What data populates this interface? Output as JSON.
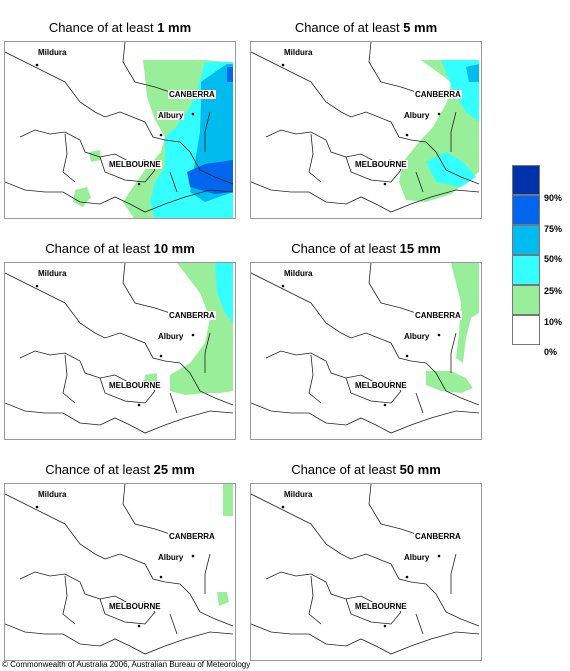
{
  "panels": [
    {
      "prefix": "Chance of at least ",
      "amount": "1 mm"
    },
    {
      "prefix": "Chance of at least ",
      "amount": "5 mm"
    },
    {
      "prefix": "Chance of at least ",
      "amount": "10 mm"
    },
    {
      "prefix": "Chance of at least ",
      "amount": "15 mm"
    },
    {
      "prefix": "Chance of at least ",
      "amount": "25 mm"
    },
    {
      "prefix": "Chance of at least ",
      "amount": "50 mm"
    }
  ],
  "cities": {
    "mildura": "Mildura",
    "canberra": "CANBERRA",
    "albury": "Albury",
    "melbourne": "MELBOURNE"
  },
  "legend": {
    "labels": [
      "90%",
      "75%",
      "50%",
      "25%",
      "10%",
      "0%"
    ],
    "colors": [
      "#0033aa",
      "#0066ee",
      "#00bbee",
      "#33ffff",
      "#99ee99",
      "#ffffff"
    ]
  },
  "copyright": "© Commonwealth of Australia 2006, Australian Bureau of Meteorology"
}
